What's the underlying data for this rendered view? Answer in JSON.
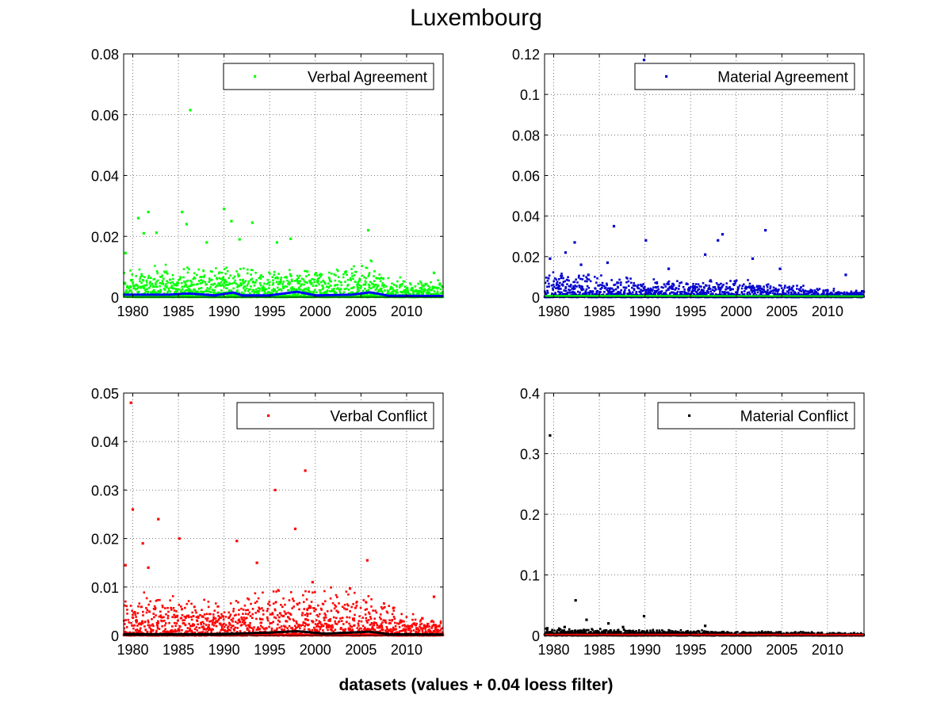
{
  "figure": {
    "title": "Luxembourg",
    "xlabel": "datasets (values + 0.04 loess filter)"
  },
  "chart_data": [
    {
      "type": "scatter",
      "position": "top-left",
      "legend": {
        "label": "Verbal Agreement",
        "placement": "top-right"
      },
      "xlim": [
        1979,
        2014
      ],
      "xticks": [
        1980,
        1985,
        1990,
        1995,
        2000,
        2005,
        2010
      ],
      "ylim": [
        0,
        0.08
      ],
      "yticks": [
        0,
        0.02,
        0.04,
        0.06,
        0.08
      ],
      "grid": true,
      "scatter_color": "#00ff00",
      "smooth_color": "#0000ff",
      "smooth": {
        "x": [
          1979,
          1984,
          1986,
          1989,
          1991,
          1992,
          1995,
          1998,
          2000,
          2004,
          2006,
          2008,
          2014
        ],
        "y": [
          0.0008,
          0.0008,
          0.0012,
          0.0006,
          0.0015,
          0.0006,
          0.0006,
          0.0018,
          0.0006,
          0.0008,
          0.0016,
          0.0005,
          0.0004
        ]
      },
      "outliers": [
        {
          "x": 1986.3,
          "y": 0.0615
        },
        {
          "x": 1990.0,
          "y": 0.029
        },
        {
          "x": 1981.7,
          "y": 0.028
        },
        {
          "x": 1985.4,
          "y": 0.028
        },
        {
          "x": 1980.6,
          "y": 0.026
        },
        {
          "x": 1990.8,
          "y": 0.025
        },
        {
          "x": 1993.1,
          "y": 0.0245
        },
        {
          "x": 1985.9,
          "y": 0.024
        },
        {
          "x": 2005.8,
          "y": 0.022
        },
        {
          "x": 1981.2,
          "y": 0.021
        },
        {
          "x": 1982.6,
          "y": 0.0212
        },
        {
          "x": 1991.7,
          "y": 0.019
        },
        {
          "x": 1997.3,
          "y": 0.0192
        },
        {
          "x": 1995.8,
          "y": 0.018
        },
        {
          "x": 1988.1,
          "y": 0.018
        },
        {
          "x": 1979.2,
          "y": 0.0145
        },
        {
          "x": 2013.0,
          "y": 0.008
        }
      ],
      "cloud": [
        [
          1979,
          0.01
        ],
        [
          1985,
          0.009
        ],
        [
          1990,
          0.01
        ],
        [
          1995,
          0.008
        ],
        [
          2000,
          0.008
        ],
        [
          2006,
          0.011
        ],
        [
          2008,
          0.006
        ],
        [
          2014,
          0.005
        ]
      ]
    },
    {
      "type": "scatter",
      "position": "top-right",
      "legend": {
        "label": "Material Agreement",
        "placement": "top-right"
      },
      "xlim": [
        1979,
        2014
      ],
      "xticks": [
        1980,
        1985,
        1990,
        1995,
        2000,
        2005,
        2010
      ],
      "ylim": [
        0,
        0.12
      ],
      "yticks": [
        0,
        0.02,
        0.04,
        0.06,
        0.08,
        0.1,
        0.12
      ],
      "grid": true,
      "scatter_color": "#0000cc",
      "smooth_color": "#00ff00",
      "smooth": {
        "x": [
          1979,
          1990,
          2000,
          2014
        ],
        "y": [
          0.0005,
          0.0005,
          0.0004,
          0.0003
        ]
      },
      "outliers": [
        {
          "x": 1989.9,
          "y": 0.117
        },
        {
          "x": 1986.6,
          "y": 0.035
        },
        {
          "x": 2003.2,
          "y": 0.033
        },
        {
          "x": 1998.5,
          "y": 0.031
        },
        {
          "x": 1990.1,
          "y": 0.028
        },
        {
          "x": 1998.0,
          "y": 0.028
        },
        {
          "x": 1982.3,
          "y": 0.027
        },
        {
          "x": 1981.3,
          "y": 0.022
        },
        {
          "x": 1996.6,
          "y": 0.021
        },
        {
          "x": 1979.6,
          "y": 0.019
        },
        {
          "x": 1985.9,
          "y": 0.017
        },
        {
          "x": 1983.0,
          "y": 0.016
        },
        {
          "x": 2001.8,
          "y": 0.019
        },
        {
          "x": 1992.6,
          "y": 0.014
        },
        {
          "x": 2004.8,
          "y": 0.014
        },
        {
          "x": 2012.0,
          "y": 0.011
        },
        {
          "x": 1983.8,
          "y": 0.011
        }
      ],
      "cloud": [
        [
          1979,
          0.012
        ],
        [
          1985,
          0.01
        ],
        [
          1990,
          0.008
        ],
        [
          1995,
          0.007
        ],
        [
          2000,
          0.008
        ],
        [
          2005,
          0.006
        ],
        [
          2010,
          0.004
        ],
        [
          2014,
          0.003
        ]
      ]
    },
    {
      "type": "scatter",
      "position": "bottom-left",
      "legend": {
        "label": "Verbal Conflict",
        "placement": "top-right"
      },
      "xlim": [
        1979,
        2014
      ],
      "xticks": [
        1980,
        1985,
        1990,
        1995,
        2000,
        2005,
        2010
      ],
      "ylim": [
        0,
        0.05
      ],
      "yticks": [
        0,
        0.01,
        0.02,
        0.03,
        0.04,
        0.05
      ],
      "grid": true,
      "scatter_color": "#ff0000",
      "smooth_color": "#000000",
      "smooth": {
        "x": [
          1979,
          1984,
          1988,
          1991,
          1995,
          1998,
          2001,
          2006,
          2008,
          2014
        ],
        "y": [
          0.0003,
          0.0003,
          0.0003,
          0.0004,
          0.0006,
          0.0009,
          0.0004,
          0.0008,
          0.0003,
          0.0002
        ]
      },
      "outliers": [
        {
          "x": 1979.8,
          "y": 0.048
        },
        {
          "x": 1998.9,
          "y": 0.034
        },
        {
          "x": 1995.6,
          "y": 0.03
        },
        {
          "x": 1980.0,
          "y": 0.026
        },
        {
          "x": 1982.8,
          "y": 0.024
        },
        {
          "x": 1997.8,
          "y": 0.022
        },
        {
          "x": 1985.1,
          "y": 0.02
        },
        {
          "x": 1991.4,
          "y": 0.0195
        },
        {
          "x": 1981.1,
          "y": 0.019
        },
        {
          "x": 2005.7,
          "y": 0.0155
        },
        {
          "x": 1979.2,
          "y": 0.0145
        },
        {
          "x": 1981.7,
          "y": 0.014
        },
        {
          "x": 1993.6,
          "y": 0.015
        },
        {
          "x": 1999.7,
          "y": 0.011
        },
        {
          "x": 2003.8,
          "y": 0.0097
        },
        {
          "x": 2013.0,
          "y": 0.008
        }
      ],
      "cloud": [
        [
          1979,
          0.009
        ],
        [
          1985,
          0.007
        ],
        [
          1990,
          0.006
        ],
        [
          1995,
          0.009
        ],
        [
          1999,
          0.009
        ],
        [
          2006,
          0.008
        ],
        [
          2010,
          0.004
        ],
        [
          2014,
          0.003
        ]
      ]
    },
    {
      "type": "scatter",
      "position": "bottom-right",
      "legend": {
        "label": "Material Conflict",
        "placement": "top-right"
      },
      "xlim": [
        1979,
        2014
      ],
      "xticks": [
        1980,
        1985,
        1990,
        1995,
        2000,
        2005,
        2010
      ],
      "ylim": [
        0,
        0.4
      ],
      "yticks": [
        0,
        0.1,
        0.2,
        0.3,
        0.4
      ],
      "grid": true,
      "scatter_color": "#000000",
      "smooth_color": "#ff0000",
      "smooth": {
        "x": [
          1979,
          1990,
          2000,
          2014
        ],
        "y": [
          0.001,
          0.001,
          0.001,
          0.0008
        ]
      },
      "outliers": [
        {
          "x": 1979.6,
          "y": 0.33
        },
        {
          "x": 1982.4,
          "y": 0.058
        },
        {
          "x": 1989.9,
          "y": 0.032
        },
        {
          "x": 1983.6,
          "y": 0.026
        },
        {
          "x": 1986.0,
          "y": 0.02
        },
        {
          "x": 1996.6,
          "y": 0.016
        },
        {
          "x": 1981.2,
          "y": 0.014
        },
        {
          "x": 1987.6,
          "y": 0.014
        },
        {
          "x": 1979.3,
          "y": 0.012
        }
      ],
      "cloud": [
        [
          1979,
          0.01
        ],
        [
          1985,
          0.01
        ],
        [
          1990,
          0.009
        ],
        [
          1995,
          0.008
        ],
        [
          2000,
          0.007
        ],
        [
          2005,
          0.006
        ],
        [
          2010,
          0.005
        ],
        [
          2014,
          0.004
        ]
      ]
    }
  ]
}
